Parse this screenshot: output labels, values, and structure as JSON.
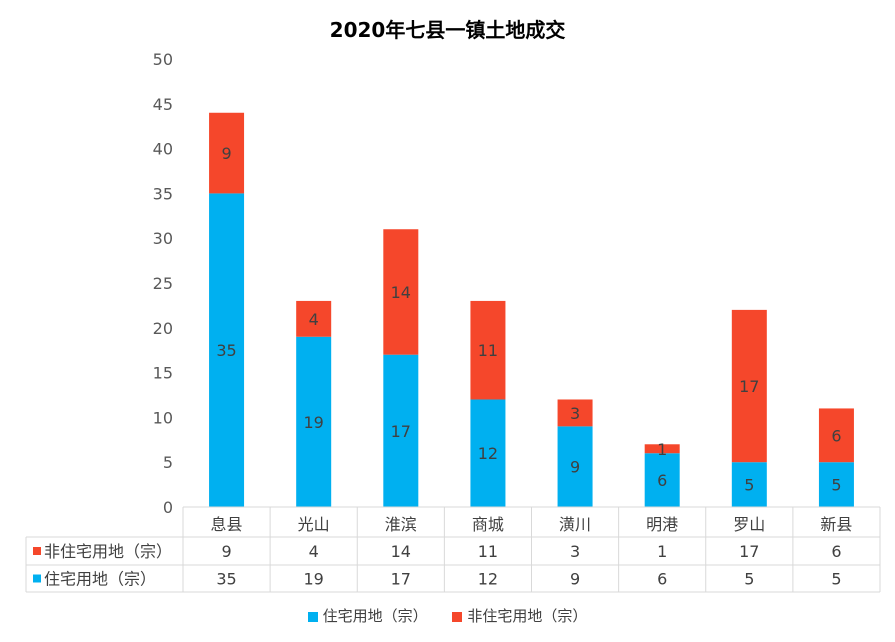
{
  "chart_data": {
    "type": "bar",
    "stacked": true,
    "title": "2020年七县一镇土地成交",
    "categories": [
      "息县",
      "光山",
      "淮滨",
      "商城",
      "潢川",
      "明港",
      "罗山",
      "新县"
    ],
    "series": [
      {
        "name": "住宅用地（宗）",
        "color": "#00B0F0",
        "values": [
          35,
          19,
          17,
          12,
          9,
          6,
          5,
          5
        ]
      },
      {
        "name": "非住宅用地（宗）",
        "color": "#F5472B",
        "values": [
          9,
          4,
          14,
          11,
          3,
          1,
          17,
          6
        ]
      }
    ],
    "ylim": [
      0,
      50
    ],
    "yticks": [
      0,
      5,
      10,
      15,
      20,
      25,
      30,
      35,
      40,
      45,
      50
    ],
    "data_table": true,
    "legend": "bottom"
  }
}
